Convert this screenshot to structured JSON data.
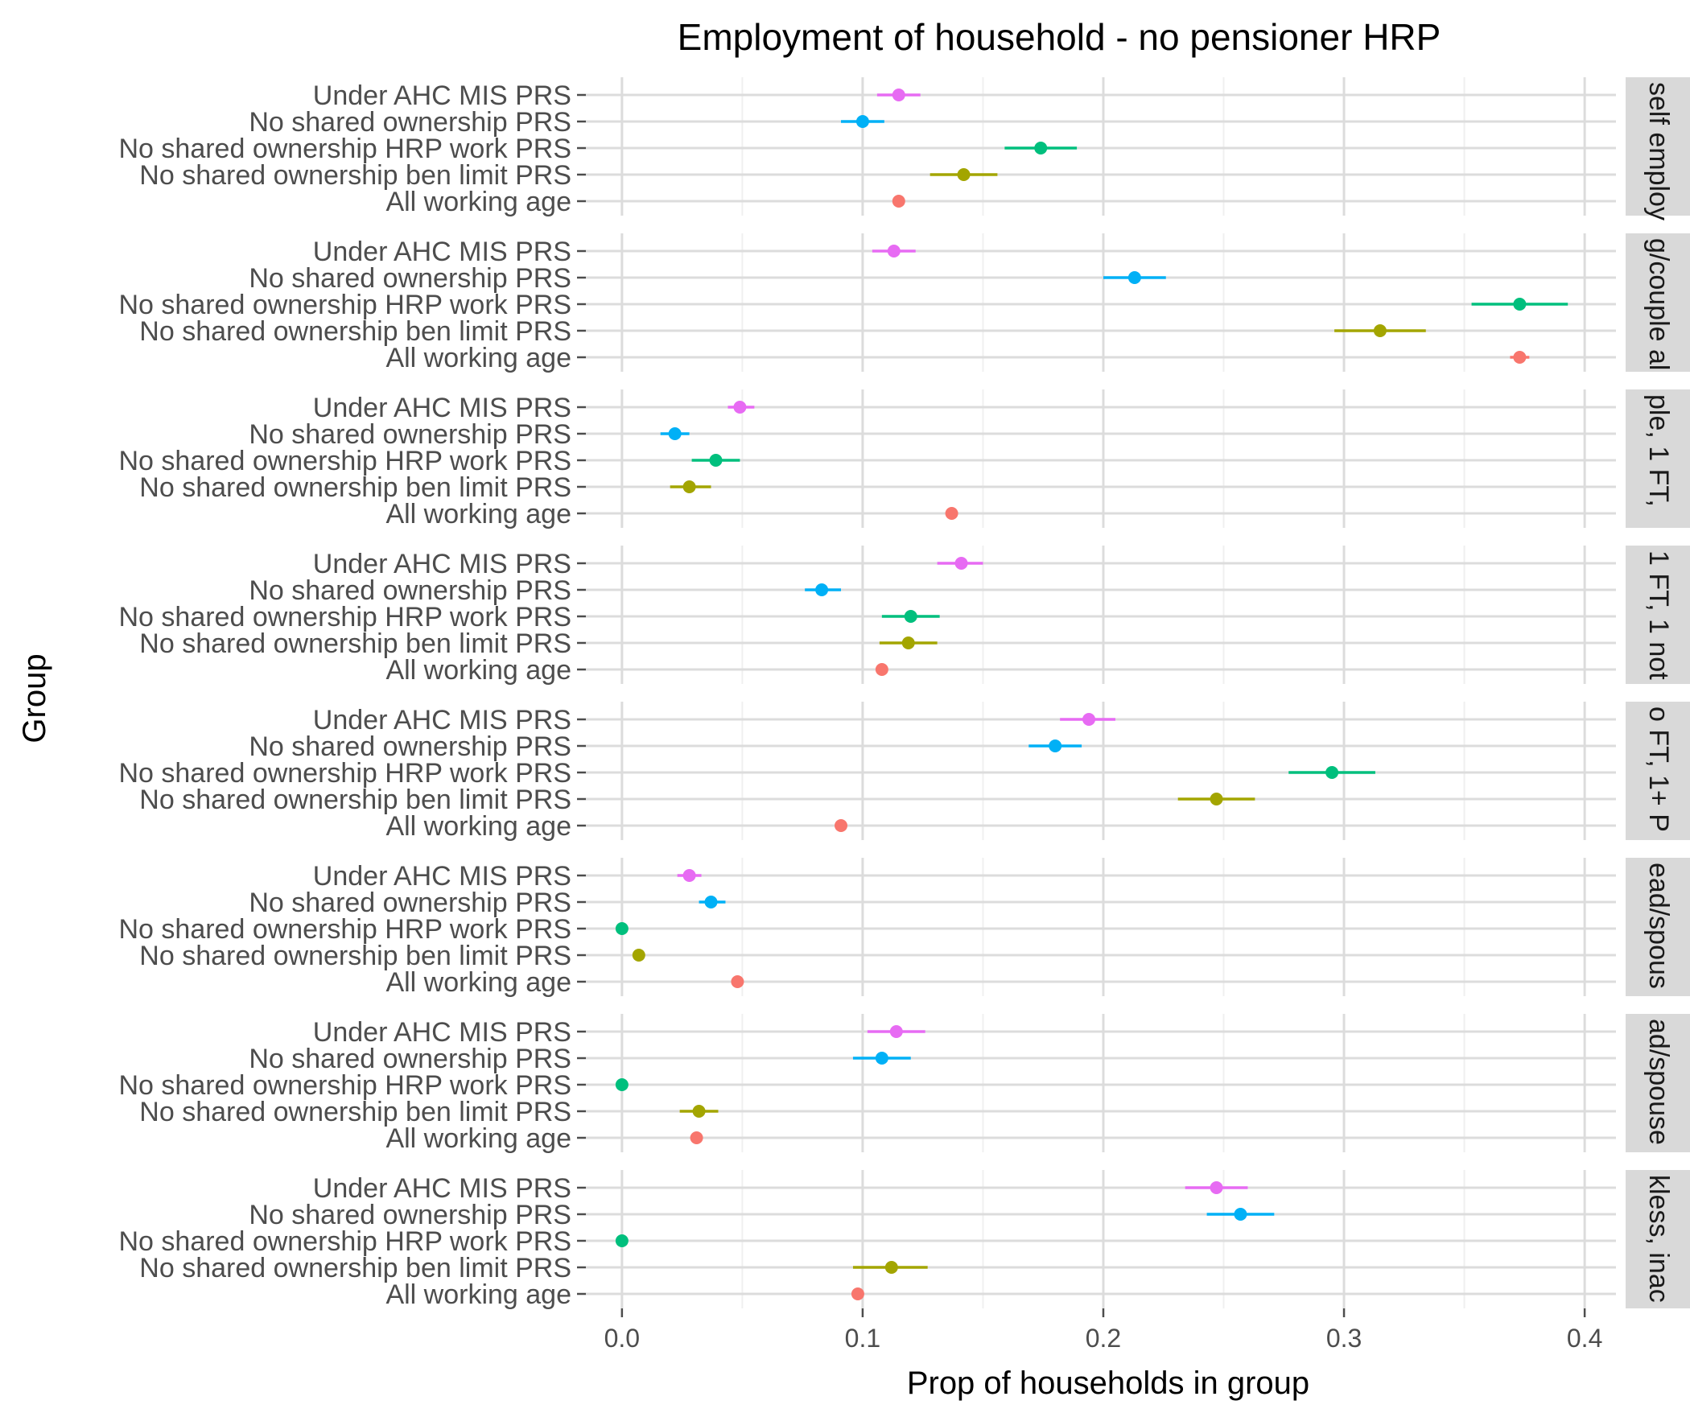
{
  "chart_data": {
    "type": "scatter",
    "title": "Employment of household - no pensioner HRP",
    "xlabel": "Prop of households in group",
    "ylabel": "Group",
    "xlim": [
      -0.015,
      0.413
    ],
    "xticks": [
      0.0,
      0.1,
      0.2,
      0.3,
      0.4
    ],
    "xtick_labels": [
      "0.0",
      "0.1",
      "0.2",
      "0.3",
      "0.4"
    ],
    "grid": true,
    "legend": "none",
    "groups": [
      "Under AHC MIS PRS",
      "No shared ownership PRS",
      "No shared ownership HRP work PRS",
      "No shared ownership ben limit PRS",
      "All working age"
    ],
    "group_colors": [
      "#E76BF3",
      "#00B0F6",
      "#00BF7D",
      "#A3A500",
      "#F8766D"
    ],
    "panels": [
      {
        "strip": "self employ",
        "estimate": [
          0.115,
          0.1,
          0.174,
          0.142,
          0.115
        ],
        "lower": [
          0.106,
          0.091,
          0.159,
          0.128,
          0.113
        ],
        "upper": [
          0.124,
          0.109,
          0.189,
          0.156,
          0.117
        ]
      },
      {
        "strip": "g/couple al",
        "estimate": [
          0.113,
          0.213,
          0.373,
          0.315,
          0.373
        ],
        "lower": [
          0.104,
          0.2,
          0.353,
          0.296,
          0.369
        ],
        "upper": [
          0.122,
          0.226,
          0.393,
          0.334,
          0.377
        ]
      },
      {
        "strip": "ple, 1 FT, ",
        "estimate": [
          0.049,
          0.022,
          0.039,
          0.028,
          0.137
        ],
        "lower": [
          0.044,
          0.016,
          0.029,
          0.02,
          0.135
        ],
        "upper": [
          0.055,
          0.028,
          0.049,
          0.037,
          0.139
        ]
      },
      {
        "strip": "1 FT, 1 not",
        "estimate": [
          0.141,
          0.083,
          0.12,
          0.119,
          0.108
        ],
        "lower": [
          0.131,
          0.076,
          0.108,
          0.107,
          0.106
        ],
        "upper": [
          0.15,
          0.091,
          0.132,
          0.131,
          0.11
        ]
      },
      {
        "strip": "o FT, 1+ P",
        "estimate": [
          0.194,
          0.18,
          0.295,
          0.247,
          0.091
        ],
        "lower": [
          0.182,
          0.169,
          0.277,
          0.231,
          0.089
        ],
        "upper": [
          0.205,
          0.191,
          0.313,
          0.263,
          0.093
        ]
      },
      {
        "strip": "ead/spous",
        "estimate": [
          0.028,
          0.037,
          0.0,
          0.007,
          0.048
        ],
        "lower": [
          0.023,
          0.032,
          0.0,
          0.005,
          0.047
        ],
        "upper": [
          0.033,
          0.043,
          0.0,
          0.009,
          0.049
        ]
      },
      {
        "strip": "ad/spouse",
        "estimate": [
          0.114,
          0.108,
          0.0,
          0.032,
          0.031
        ],
        "lower": [
          0.102,
          0.096,
          0.0,
          0.024,
          0.03
        ],
        "upper": [
          0.126,
          0.12,
          0.0,
          0.04,
          0.032
        ]
      },
      {
        "strip": "kless, inac",
        "estimate": [
          0.247,
          0.257,
          0.0,
          0.112,
          0.098
        ],
        "lower": [
          0.234,
          0.243,
          0.0,
          0.096,
          0.096
        ],
        "upper": [
          0.26,
          0.271,
          0.0,
          0.127,
          0.1
        ]
      }
    ]
  }
}
